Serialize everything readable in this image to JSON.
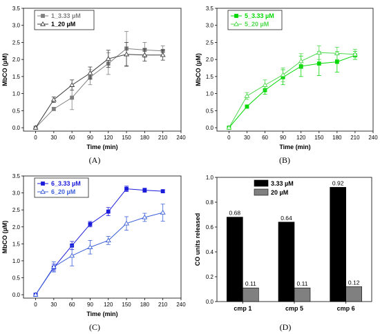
{
  "chart_data": [
    {
      "type": "line",
      "panel_label": "(A)",
      "xlabel": "Time (min)",
      "ylabel": "MbCO (µM)",
      "xlim": [
        -20,
        240
      ],
      "ylim": [
        -0.1,
        3.5
      ],
      "xticks": [
        0,
        30,
        60,
        90,
        120,
        150,
        180,
        210,
        240
      ],
      "yticks": [
        0.0,
        0.5,
        1.0,
        1.5,
        2.0,
        2.5,
        3.0,
        3.5
      ],
      "legend_position": "top-left",
      "x": [
        0,
        30,
        60,
        90,
        120,
        150,
        180,
        210
      ],
      "series": [
        {
          "name": "1_3.33 µM",
          "marker": "square-filled",
          "color": "#7f7f7f",
          "values": [
            0.0,
            0.55,
            0.88,
            1.48,
            1.88,
            2.32,
            2.28,
            2.25
          ],
          "errors": [
            0.0,
            0.05,
            0.35,
            0.22,
            0.32,
            0.5,
            0.22,
            0.15
          ]
        },
        {
          "name": "1_20 µM",
          "marker": "triangle-open",
          "color": "#3a3a3a",
          "values": [
            0.0,
            0.82,
            1.25,
            1.6,
            2.02,
            2.15,
            2.13,
            2.13
          ],
          "errors": [
            0.0,
            0.08,
            0.15,
            0.18,
            0.25,
            0.35,
            0.18,
            0.15
          ]
        }
      ]
    },
    {
      "type": "line",
      "panel_label": "(B)",
      "xlabel": "Time (min)",
      "ylabel": "MbCO (µM)",
      "xlim": [
        -20,
        240
      ],
      "ylim": [
        -0.1,
        3.5
      ],
      "xticks": [
        0,
        30,
        60,
        90,
        120,
        150,
        180,
        210,
        240
      ],
      "yticks": [
        0.0,
        0.5,
        1.0,
        1.5,
        2.0,
        2.5,
        3.0,
        3.5
      ],
      "legend_position": "top-left",
      "x": [
        0,
        30,
        60,
        90,
        120,
        150,
        180,
        210
      ],
      "series": [
        {
          "name": "5_3.33 µM",
          "marker": "square-filled",
          "color": "#00d800",
          "values": [
            0.0,
            0.62,
            1.1,
            1.48,
            1.8,
            1.88,
            1.93,
            2.12
          ],
          "errors": [
            0.0,
            0.05,
            0.12,
            0.22,
            0.3,
            0.35,
            0.3,
            0.12
          ]
        },
        {
          "name": "5_20 µM",
          "marker": "triangle-open",
          "color": "#4cd84c",
          "values": [
            0.0,
            0.93,
            1.25,
            1.55,
            1.95,
            2.2,
            2.18,
            2.15
          ],
          "errors": [
            0.0,
            0.1,
            0.15,
            0.2,
            0.22,
            0.2,
            0.18,
            0.15
          ]
        }
      ]
    },
    {
      "type": "line",
      "panel_label": "(C)",
      "xlabel": "Time (min)",
      "ylabel": "MbCO (µM)",
      "xlim": [
        -20,
        240
      ],
      "ylim": [
        -0.1,
        3.5
      ],
      "xticks": [
        0,
        30,
        60,
        90,
        120,
        150,
        180,
        210,
        240
      ],
      "yticks": [
        0.0,
        0.5,
        1.0,
        1.5,
        2.0,
        2.5,
        3.0,
        3.5
      ],
      "legend_position": "top-left",
      "x": [
        0,
        30,
        60,
        90,
        120,
        150,
        180,
        210
      ],
      "series": [
        {
          "name": "6_3.33 µM",
          "marker": "square-filled",
          "color": "#1a1adb",
          "values": [
            0.0,
            0.8,
            1.45,
            2.08,
            2.45,
            3.12,
            3.08,
            3.05
          ],
          "errors": [
            0.0,
            0.1,
            0.12,
            0.08,
            0.12,
            0.08,
            0.06,
            0.04
          ]
        },
        {
          "name": "6_20 µM",
          "marker": "triangle-open",
          "color": "#3b5fd8",
          "values": [
            0.0,
            0.82,
            1.15,
            1.4,
            1.6,
            2.1,
            2.28,
            2.42
          ],
          "errors": [
            0.0,
            0.15,
            0.3,
            0.2,
            0.12,
            0.2,
            0.12,
            0.25
          ]
        }
      ]
    },
    {
      "type": "bar",
      "panel_label": "(D)",
      "ylabel": "CO units released",
      "ylim": [
        0.0,
        1.0
      ],
      "yticks": [
        0.0,
        0.2,
        0.4,
        0.6,
        0.8,
        1.0
      ],
      "legend_position": "top-left",
      "categories": [
        "cmp 1",
        "cmp 5",
        "cmp 6"
      ],
      "series": [
        {
          "name": "3.33 µM",
          "color": "#000000",
          "values": [
            0.68,
            0.64,
            0.92
          ],
          "labels": [
            "0.68",
            "0.64",
            "0.92"
          ]
        },
        {
          "name": "20 µM",
          "color": "#808080",
          "values": [
            0.11,
            0.11,
            0.12
          ],
          "labels": [
            "0.11",
            "0.11",
            "0.12"
          ]
        }
      ]
    }
  ]
}
